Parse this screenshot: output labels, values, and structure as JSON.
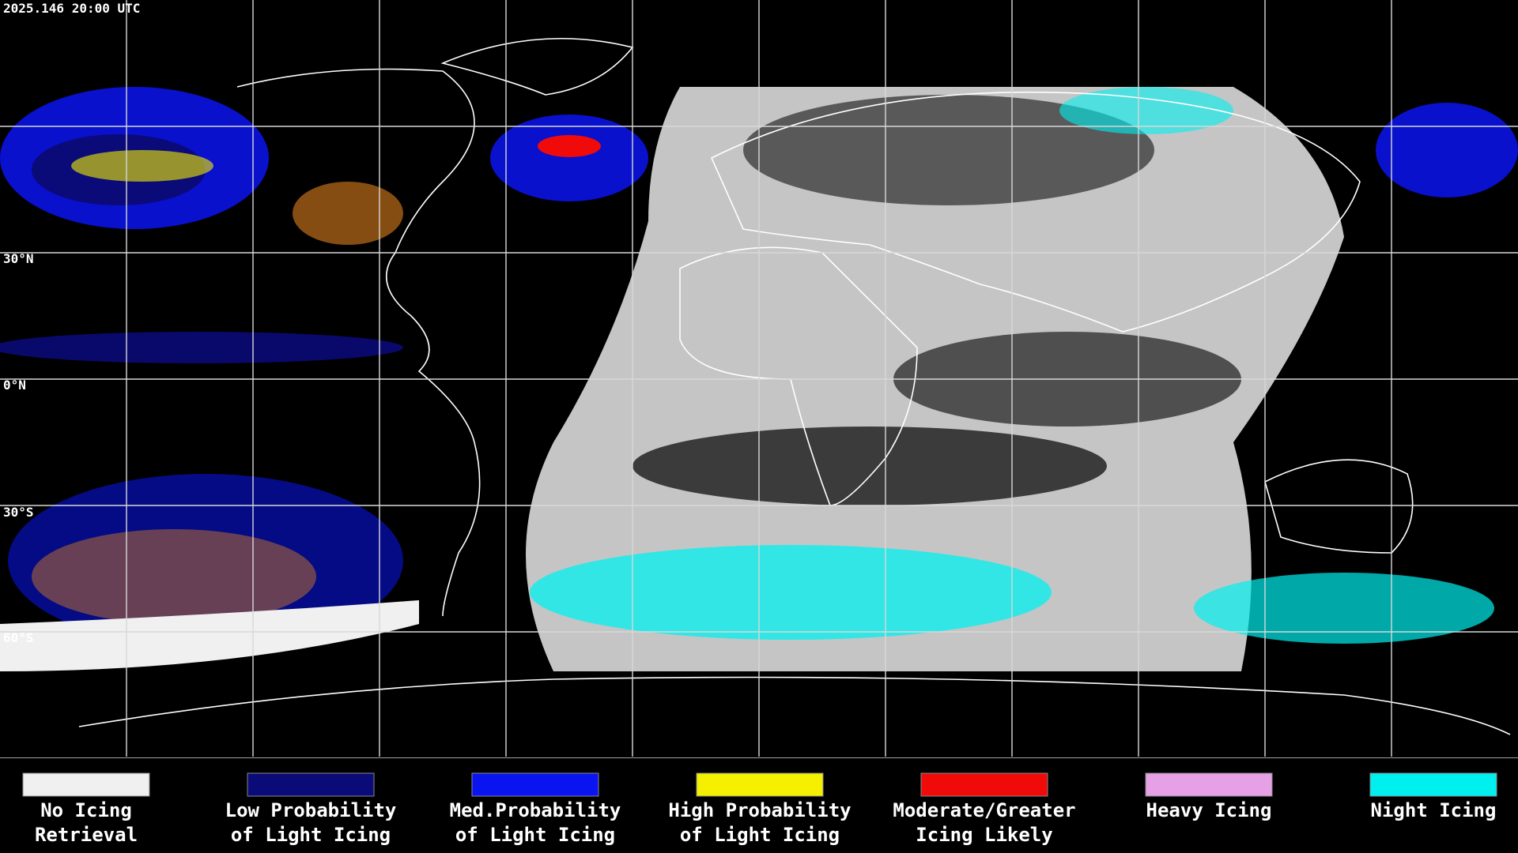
{
  "header": {
    "timestamp": "2025.146 20:00 UTC"
  },
  "latitude_labels": [
    "30°N",
    "0°N",
    "30°S",
    "60°S"
  ],
  "legend": {
    "items": [
      {
        "lines": [
          "No Icing",
          "Retrieval"
        ],
        "color": "#f0f0f0"
      },
      {
        "lines": [
          "Low Probability",
          "of Light Icing"
        ],
        "color": "#0a0a78"
      },
      {
        "lines": [
          "Med.Probability",
          "of Light Icing"
        ],
        "color": "#0a14f0"
      },
      {
        "lines": [
          "High Probability",
          "of Light Icing"
        ],
        "color": "#f5f000"
      },
      {
        "lines": [
          "Moderate/Greater",
          "Icing Likely"
        ],
        "color": "#f00a0a"
      },
      {
        "lines": [
          "Heavy Icing"
        ],
        "color": "#e6a0e6"
      },
      {
        "lines": [
          "Night Icing"
        ],
        "color": "#00f0f0"
      }
    ]
  }
}
